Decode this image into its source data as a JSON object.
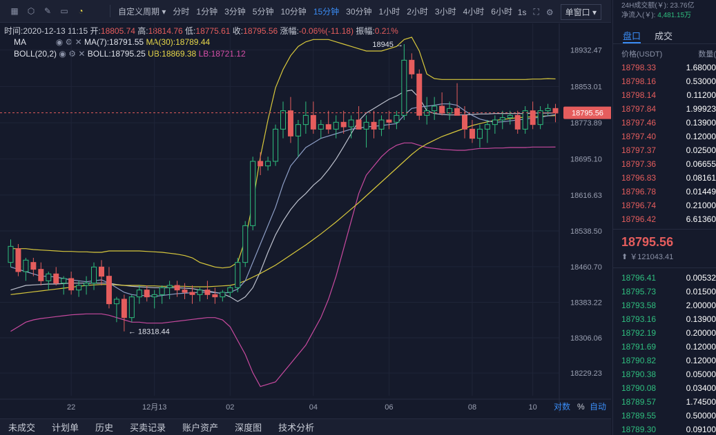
{
  "toolbar": {
    "custom_period": "自定义周期",
    "periods": [
      "分时",
      "1分钟",
      "3分钟",
      "5分钟",
      "10分钟",
      "15分钟",
      "30分钟",
      "1小时",
      "2小时",
      "3小时",
      "4小时",
      "6小时"
    ],
    "active_period": "15分钟",
    "interval_1s": "1s",
    "window_btn": "单窗口"
  },
  "ohlc": {
    "time": "时间:2020-12-13 11:15",
    "open_label": "开:",
    "open": "18805.74",
    "high_label": "高:",
    "high": "18814.76",
    "low_label": "低:",
    "low": "18775.61",
    "close_label": "收:",
    "close": "18795.56",
    "change_label": "涨幅:",
    "change": "-0.06%(-11.18)",
    "amp_label": "振幅:",
    "amp": "0.21%"
  },
  "indicators": {
    "ma_name": "MA",
    "ma7": "MA(7):18791.55",
    "ma30": "MA(30):18789.44",
    "boll_name": "BOLL(20,2)",
    "boll": "BOLL:18795.25",
    "ub": "UB:18869.38",
    "lb": "LB:18721.12"
  },
  "chart_data": {
    "type": "candlestick",
    "y_ticks": [
      "18932.47",
      "18853.01",
      "18773.89",
      "18695.10",
      "18616.63",
      "18538.50",
      "18460.70",
      "18383.22",
      "18306.06",
      "18229.23"
    ],
    "x_ticks": [
      "22",
      "12月13",
      "02",
      "04",
      "06",
      "08",
      "10"
    ],
    "current_price": "18795.56",
    "high_marker": "18945",
    "low_marker": "18318.44",
    "ylim": [
      18180,
      18990
    ],
    "candles": [
      [
        18470,
        18520,
        18460,
        18505
      ],
      [
        18500,
        18510,
        18440,
        18450
      ],
      [
        18450,
        18480,
        18430,
        18475
      ],
      [
        18470,
        18480,
        18440,
        18455
      ],
      [
        18455,
        18470,
        18420,
        18430
      ],
      [
        18430,
        18450,
        18410,
        18445
      ],
      [
        18445,
        18460,
        18420,
        18425
      ],
      [
        18425,
        18440,
        18400,
        18435
      ],
      [
        18435,
        18450,
        18400,
        18410
      ],
      [
        18410,
        18430,
        18395,
        18420
      ],
      [
        18420,
        18440,
        18400,
        18425
      ],
      [
        18425,
        18470,
        18410,
        18460
      ],
      [
        18460,
        18475,
        18420,
        18440
      ],
      [
        18440,
        18460,
        18370,
        18380
      ],
      [
        18380,
        18395,
        18340,
        18390
      ],
      [
        18390,
        18400,
        18320,
        18350
      ],
      [
        18350,
        18400,
        18340,
        18395
      ],
      [
        18395,
        18420,
        18380,
        18410
      ],
      [
        18410,
        18420,
        18385,
        18395
      ],
      [
        18395,
        18410,
        18370,
        18400
      ],
      [
        18400,
        18420,
        18380,
        18415
      ],
      [
        18415,
        18430,
        18390,
        18420
      ],
      [
        18420,
        18430,
        18395,
        18410
      ],
      [
        18410,
        18425,
        18390,
        18405
      ],
      [
        18405,
        18420,
        18380,
        18400
      ],
      [
        18400,
        18415,
        18385,
        18410
      ],
      [
        18410,
        18430,
        18390,
        18400
      ],
      [
        18400,
        18415,
        18380,
        18395
      ],
      [
        18395,
        18410,
        18385,
        18405
      ],
      [
        18405,
        18420,
        18395,
        18415
      ],
      [
        18415,
        18480,
        18405,
        18470
      ],
      [
        18470,
        18560,
        18460,
        18550
      ],
      [
        18550,
        18700,
        18540,
        18690
      ],
      [
        18690,
        18710,
        18660,
        18680
      ],
      [
        18680,
        18700,
        18670,
        18690
      ],
      [
        18690,
        18770,
        18680,
        18760
      ],
      [
        18760,
        18820,
        18740,
        18800
      ],
      [
        18800,
        18830,
        18730,
        18745
      ],
      [
        18745,
        18780,
        18700,
        18770
      ],
      [
        18770,
        18820,
        18750,
        18790
      ],
      [
        18790,
        18820,
        18750,
        18760
      ],
      [
        18760,
        18780,
        18740,
        18770
      ],
      [
        18770,
        18800,
        18750,
        18760
      ],
      [
        18760,
        18790,
        18740,
        18775
      ],
      [
        18775,
        18800,
        18750,
        18765
      ],
      [
        18765,
        18790,
        18740,
        18780
      ],
      [
        18780,
        18810,
        18760,
        18760
      ],
      [
        18760,
        18790,
        18720,
        18775
      ],
      [
        18775,
        18800,
        18740,
        18760
      ],
      [
        18760,
        18790,
        18745,
        18780
      ],
      [
        18780,
        18800,
        18760,
        18775
      ],
      [
        18775,
        18800,
        18760,
        18790
      ],
      [
        18790,
        18945,
        18780,
        18910
      ],
      [
        18910,
        18925,
        18870,
        18880
      ],
      [
        18880,
        18890,
        18780,
        18790
      ],
      [
        18790,
        18830,
        18770,
        18800
      ],
      [
        18800,
        18830,
        18780,
        18810
      ],
      [
        18810,
        18840,
        18790,
        18795
      ],
      [
        18795,
        18820,
        18780,
        18805
      ],
      [
        18805,
        18860,
        18790,
        18790
      ],
      [
        18790,
        18810,
        18740,
        18760
      ],
      [
        18760,
        18780,
        18730,
        18740
      ],
      [
        18740,
        18770,
        18720,
        18760
      ],
      [
        18760,
        18780,
        18730,
        18770
      ],
      [
        18770,
        18790,
        18750,
        18780
      ],
      [
        18780,
        18800,
        18760,
        18785
      ],
      [
        18785,
        18800,
        18770,
        18790
      ],
      [
        18790,
        18800,
        18750,
        18760
      ],
      [
        18760,
        18810,
        18750,
        18800
      ],
      [
        18800,
        18820,
        18760,
        18770
      ],
      [
        18770,
        18810,
        18760,
        18800
      ],
      [
        18800,
        18815,
        18790,
        18805
      ],
      [
        18805,
        18815,
        18775,
        18795
      ]
    ],
    "ma7": [
      18460,
      18455,
      18450,
      18445,
      18440,
      18440,
      18438,
      18435,
      18432,
      18430,
      18428,
      18430,
      18432,
      18425,
      18415,
      18405,
      18400,
      18398,
      18398,
      18396,
      18398,
      18400,
      18402,
      18403,
      18404,
      18405,
      18406,
      18404,
      18403,
      18405,
      18412,
      18430,
      18470,
      18510,
      18550,
      18590,
      18640,
      18680,
      18700,
      18720,
      18730,
      18740,
      18745,
      18750,
      18755,
      18760,
      18762,
      18765,
      18766,
      18768,
      18770,
      18772,
      18790,
      18805,
      18808,
      18810,
      18812,
      18815,
      18815,
      18812,
      18800,
      18790,
      18782,
      18778,
      18775,
      18776,
      18778,
      18780,
      18782,
      18784,
      18786,
      18789,
      18791.55
    ],
    "ma30": [
      18400,
      18402,
      18404,
      18406,
      18408,
      18410,
      18412,
      18414,
      18416,
      18418,
      18420,
      18421,
      18422,
      18422,
      18421,
      18420,
      18420,
      18420,
      18419,
      18419,
      18418,
      18418,
      18418,
      18418,
      18417,
      18417,
      18417,
      18418,
      18419,
      18420,
      18424,
      18430,
      18438,
      18446,
      18455,
      18464,
      18475,
      18486,
      18497,
      18508,
      18520,
      18532,
      18545,
      18558,
      18572,
      18586,
      18600,
      18615,
      18630,
      18645,
      18660,
      18675,
      18690,
      18705,
      18718,
      18728,
      18736,
      18744,
      18750,
      18756,
      18762,
      18768,
      18772,
      18776,
      18779,
      18781,
      18783,
      18785,
      18786,
      18787,
      18788,
      18789,
      18789.44
    ],
    "boll_ub": [
      18500,
      18500,
      18500,
      18498,
      18497,
      18496,
      18495,
      18494,
      18494,
      18493,
      18493,
      18492,
      18492,
      18495,
      18495,
      18495,
      18495,
      18495,
      18494,
      18493,
      18492,
      18490,
      18488,
      18485,
      18480,
      18470,
      18465,
      18460,
      18458,
      18460,
      18470,
      18520,
      18600,
      18700,
      18780,
      18850,
      18890,
      18920,
      18940,
      18950,
      18955,
      18955,
      18955,
      18950,
      18945,
      18940,
      18935,
      18930,
      18930,
      18930,
      18935,
      18940,
      18955,
      18960,
      18930,
      18880,
      18870,
      18868,
      18868,
      18868,
      18868,
      18868,
      18868,
      18868,
      18868,
      18868,
      18868,
      18868,
      18868,
      18869,
      18869,
      18870,
      18869.38
    ],
    "boll_lb": [
      18320,
      18330,
      18340,
      18345,
      18348,
      18350,
      18352,
      18354,
      18356,
      18357,
      18358,
      18358,
      18358,
      18355,
      18350,
      18345,
      18340,
      18340,
      18338,
      18338,
      18338,
      18340,
      18342,
      18344,
      18346,
      18348,
      18350,
      18350,
      18345,
      18330,
      18300,
      18270,
      18230,
      18200,
      18205,
      18210,
      18230,
      18250,
      18270,
      18290,
      18320,
      18350,
      18390,
      18440,
      18500,
      18560,
      18620,
      18660,
      18680,
      18700,
      18715,
      18725,
      18730,
      18730,
      18725,
      18720,
      18718,
      18716,
      18715,
      18714,
      18714,
      18716,
      18718,
      18718,
      18719,
      18719,
      18720,
      18720,
      18720,
      18721,
      18721,
      18721,
      18721.12
    ],
    "boll_mid": [
      18410,
      18415,
      18420,
      18421,
      18422,
      18423,
      18423,
      18424,
      18425,
      18425,
      18425,
      18425,
      18425,
      18425,
      18422,
      18420,
      18418,
      18417,
      18416,
      18415,
      18415,
      18415,
      18415,
      18414,
      18413,
      18410,
      18408,
      18405,
      18402,
      18395,
      18385,
      18395,
      18415,
      18450,
      18492,
      18530,
      18560,
      18585,
      18605,
      18620,
      18638,
      18652,
      18672,
      18695,
      18722,
      18750,
      18778,
      18795,
      18805,
      18815,
      18825,
      18832,
      18842,
      18845,
      18828,
      18800,
      18794,
      18792,
      18791,
      18791,
      18791,
      18792,
      18793,
      18793,
      18794,
      18794,
      18794,
      18794,
      18794,
      18795,
      18795,
      18795,
      18795.25
    ]
  },
  "chart_footer": {
    "log": "对数",
    "pct": "%",
    "auto": "自动"
  },
  "bottom_tabs": [
    "未成交",
    "计划单",
    "历史",
    "买卖记录",
    "账户资产",
    "深度图",
    "技术分析"
  ],
  "panel": {
    "vol_24h": "24H成交额(￥): 23.76亿",
    "net_in_label": "净流入(￥):",
    "net_in": "4,481.15万",
    "tab_book": "盘口",
    "tab_trades": "成交",
    "col_price": "价格(USDT)",
    "col_qty": "数量(",
    "asks": [
      {
        "p": "18798.33",
        "q": "1.68000"
      },
      {
        "p": "18798.16",
        "q": "0.53000"
      },
      {
        "p": "18798.14",
        "q": "0.11200"
      },
      {
        "p": "18797.84",
        "q": "1.99923"
      },
      {
        "p": "18797.46",
        "q": "0.13900"
      },
      {
        "p": "18797.40",
        "q": "0.12000"
      },
      {
        "p": "18797.37",
        "q": "0.02500"
      },
      {
        "p": "18797.36",
        "q": "0.06655"
      },
      {
        "p": "18796.83",
        "q": "0.08161"
      },
      {
        "p": "18796.78",
        "q": "0.01449"
      },
      {
        "p": "18796.74",
        "q": "0.21000"
      },
      {
        "p": "18796.42",
        "q": "6.61360"
      }
    ],
    "last_price": "18795.56",
    "last_cny": "￥121043.41",
    "bids": [
      {
        "p": "18796.41",
        "q": "0.00532"
      },
      {
        "p": "18795.73",
        "q": "0.01500"
      },
      {
        "p": "18793.58",
        "q": "2.00000"
      },
      {
        "p": "18793.16",
        "q": "0.13900"
      },
      {
        "p": "18792.19",
        "q": "0.20000"
      },
      {
        "p": "18791.69",
        "q": "0.12000"
      },
      {
        "p": "18790.82",
        "q": "0.12000"
      },
      {
        "p": "18790.38",
        "q": "0.05000"
      },
      {
        "p": "18790.08",
        "q": "0.03400"
      },
      {
        "p": "18789.57",
        "q": "1.74500"
      },
      {
        "p": "18789.55",
        "q": "0.50000"
      },
      {
        "p": "18789.30",
        "q": "0.09100"
      }
    ]
  }
}
